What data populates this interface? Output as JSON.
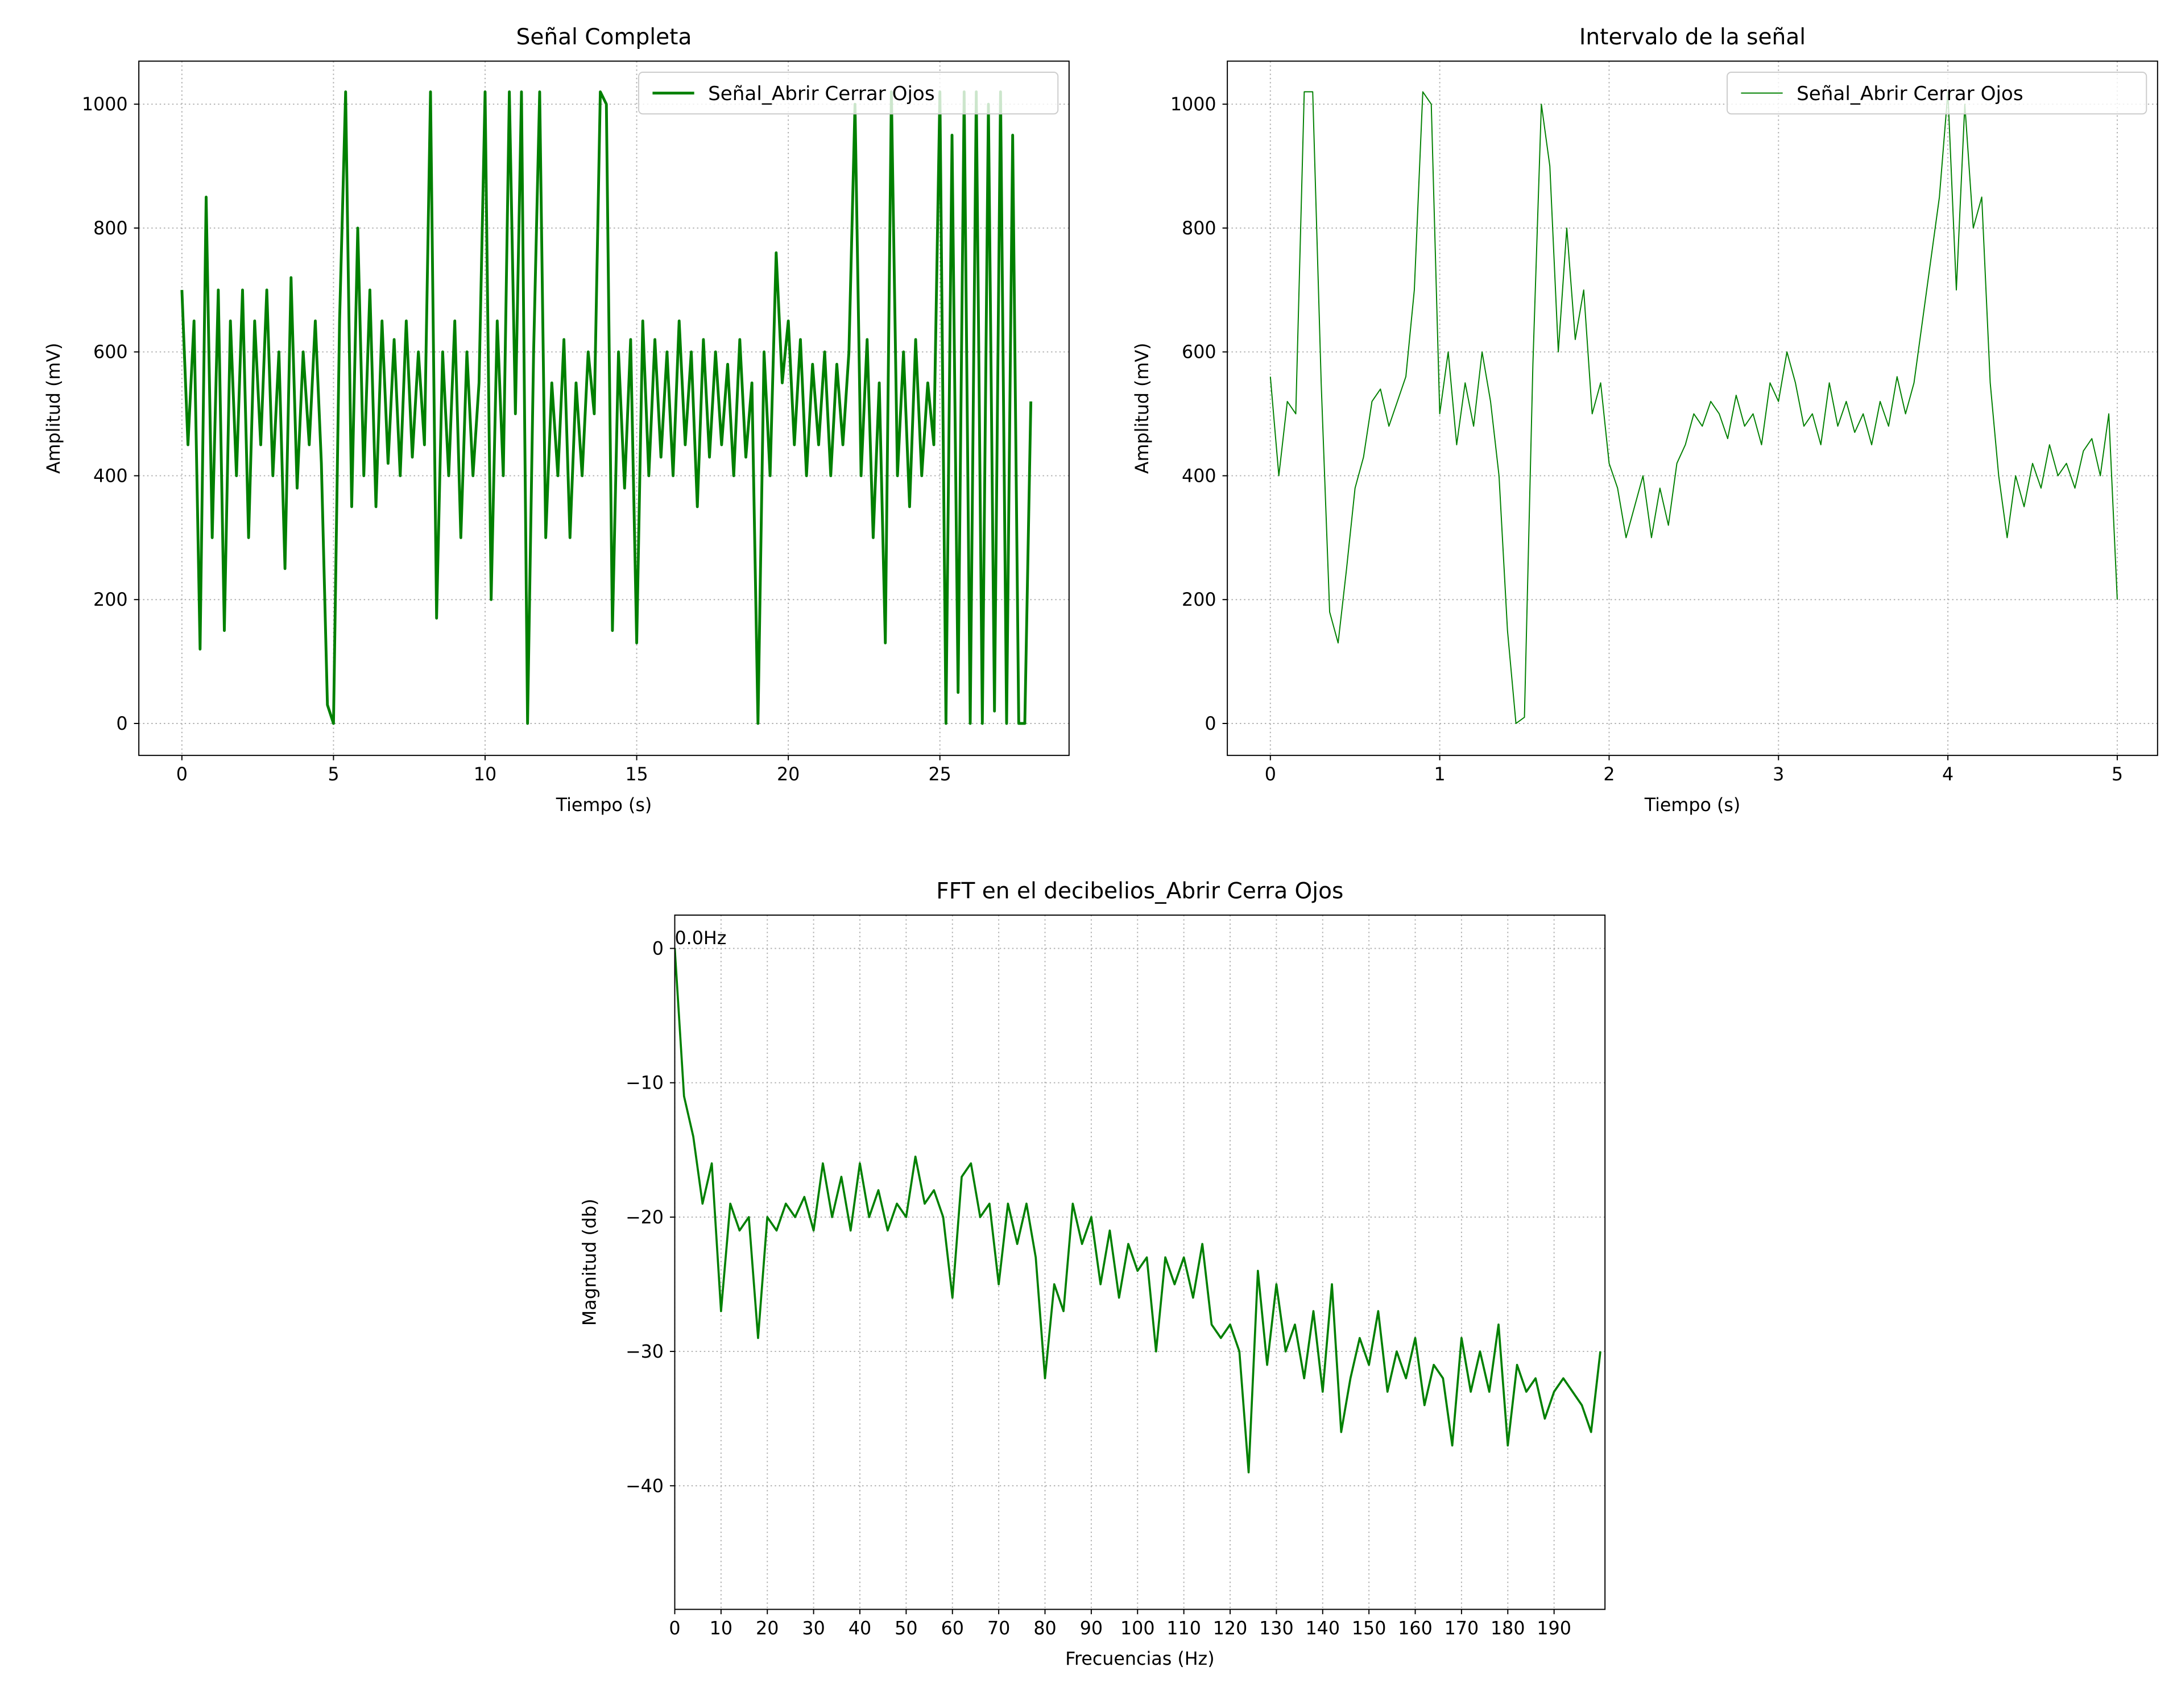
{
  "chart_data": [
    {
      "type": "line",
      "title": "Señal Completa",
      "xlabel": "Tiempo (s)",
      "ylabel": "Amplitud (mV)",
      "x": [
        0,
        0.2,
        0.4,
        0.6,
        0.8,
        1,
        1.2,
        1.4,
        1.6,
        1.8,
        2,
        2.2,
        2.4,
        2.6,
        2.8,
        3,
        3.2,
        3.4,
        3.6,
        3.8,
        4,
        4.2,
        4.4,
        4.6,
        4.8,
        5,
        5.2,
        5.4,
        5.6,
        5.8,
        6,
        6.2,
        6.4,
        6.6,
        6.8,
        7,
        7.2,
        7.4,
        7.6,
        7.8,
        8,
        8.2,
        8.4,
        8.6,
        8.8,
        9,
        9.2,
        9.4,
        9.6,
        9.8,
        10,
        10.2,
        10.4,
        10.6,
        10.8,
        11,
        11.2,
        11.4,
        11.6,
        11.8,
        12,
        12.2,
        12.4,
        12.6,
        12.8,
        13,
        13.2,
        13.4,
        13.6,
        13.8,
        14,
        14.2,
        14.4,
        14.6,
        14.8,
        15,
        15.2,
        15.4,
        15.6,
        15.8,
        16,
        16.2,
        16.4,
        16.6,
        16.8,
        17,
        17.2,
        17.4,
        17.6,
        17.8,
        18,
        18.2,
        18.4,
        18.6,
        18.8,
        19,
        19.2,
        19.4,
        19.6,
        19.8,
        20,
        20.2,
        20.4,
        20.6,
        20.8,
        21,
        21.2,
        21.4,
        21.6,
        21.8,
        22,
        22.2,
        22.4,
        22.6,
        22.8,
        23,
        23.2,
        23.4,
        23.6,
        23.8,
        24,
        24.2,
        24.4,
        24.6,
        24.8,
        25,
        25.2,
        25.4,
        25.6,
        25.8,
        26,
        26.2,
        26.4,
        26.6,
        26.8,
        27,
        27.2,
        27.4,
        27.6,
        27.8,
        28
      ],
      "series": [
        {
          "name": "Señal_Abrir Cerrar Ojos",
          "color": "#008000",
          "linewidth": 2,
          "values": [
            700,
            450,
            650,
            120,
            850,
            300,
            700,
            150,
            650,
            400,
            700,
            300,
            650,
            450,
            700,
            400,
            600,
            250,
            720,
            380,
            600,
            450,
            650,
            420,
            30,
            0,
            650,
            1020,
            350,
            800,
            400,
            700,
            350,
            650,
            420,
            620,
            400,
            650,
            430,
            600,
            450,
            1020,
            170,
            600,
            400,
            650,
            300,
            600,
            400,
            550,
            1020,
            200,
            650,
            400,
            1020,
            500,
            1020,
            0,
            600,
            1020,
            300,
            550,
            400,
            620,
            300,
            550,
            400,
            600,
            500,
            1020,
            1000,
            150,
            600,
            380,
            620,
            130,
            650,
            400,
            620,
            430,
            600,
            400,
            650,
            450,
            600,
            350,
            620,
            430,
            600,
            450,
            580,
            400,
            620,
            430,
            550,
            0,
            600,
            400,
            760,
            550,
            650,
            450,
            620,
            400,
            580,
            450,
            600,
            400,
            580,
            450,
            600,
            1000,
            400,
            620,
            300,
            550,
            130,
            1020,
            400,
            600,
            350,
            620,
            400,
            550,
            450,
            1020,
            0,
            950,
            50,
            1020,
            0,
            1020,
            0,
            1000,
            20,
            1020,
            0,
            950,
            0,
            0,
            520
          ]
        }
      ],
      "xlim": [
        -1.42,
        29.26
      ],
      "ylim": [
        -51.6,
        1069.5
      ],
      "xticks": [
        0,
        5,
        10,
        15,
        20,
        25
      ],
      "yticks": [
        0,
        200,
        400,
        600,
        800,
        1000
      ],
      "grid": true,
      "legend": "upper right"
    },
    {
      "type": "line",
      "title": "Intervalo de la señal",
      "xlabel": "Tiempo (s)",
      "ylabel": "Amplitud (mV)",
      "x": [
        0,
        0.05,
        0.1,
        0.15,
        0.2,
        0.25,
        0.3,
        0.35,
        0.4,
        0.45,
        0.5,
        0.55,
        0.6,
        0.65,
        0.7,
        0.75,
        0.8,
        0.85,
        0.9,
        0.95,
        1,
        1.05,
        1.1,
        1.15,
        1.2,
        1.25,
        1.3,
        1.35,
        1.4,
        1.45,
        1.5,
        1.55,
        1.6,
        1.65,
        1.7,
        1.75,
        1.8,
        1.85,
        1.9,
        1.95,
        2,
        2.05,
        2.1,
        2.15,
        2.2,
        2.25,
        2.3,
        2.35,
        2.4,
        2.45,
        2.5,
        2.55,
        2.6,
        2.65,
        2.7,
        2.75,
        2.8,
        2.85,
        2.9,
        2.95,
        3,
        3.05,
        3.1,
        3.15,
        3.2,
        3.25,
        3.3,
        3.35,
        3.4,
        3.45,
        3.5,
        3.55,
        3.6,
        3.65,
        3.7,
        3.75,
        3.8,
        3.85,
        3.9,
        3.95,
        4,
        4.05,
        4.1,
        4.15,
        4.2,
        4.25,
        4.3,
        4.35,
        4.4,
        4.45,
        4.5,
        4.55,
        4.6,
        4.65,
        4.7,
        4.75,
        4.8,
        4.85,
        4.9,
        4.95,
        5
      ],
      "series": [
        {
          "name": "Señal_Abrir Cerrar Ojos",
          "color": "#008000",
          "linewidth": 0.8,
          "values": [
            560,
            400,
            520,
            500,
            1020,
            1020,
            550,
            180,
            130,
            250,
            380,
            430,
            520,
            540,
            480,
            520,
            560,
            700,
            1020,
            1000,
            500,
            600,
            450,
            550,
            480,
            600,
            520,
            400,
            150,
            0,
            10,
            580,
            1000,
            900,
            600,
            800,
            620,
            700,
            500,
            550,
            420,
            380,
            300,
            350,
            400,
            300,
            380,
            320,
            420,
            450,
            500,
            480,
            520,
            500,
            460,
            530,
            480,
            500,
            450,
            550,
            520,
            600,
            550,
            480,
            500,
            450,
            550,
            480,
            520,
            470,
            500,
            450,
            520,
            480,
            560,
            500,
            550,
            650,
            750,
            850,
            1020,
            700,
            1000,
            800,
            850,
            550,
            400,
            300,
            400,
            350,
            420,
            380,
            450,
            400,
            420,
            380,
            440,
            460,
            400,
            500,
            200
          ]
        }
      ],
      "xlim": [
        -0.254,
        5.238
      ],
      "ylim": [
        -51.6,
        1069.5
      ],
      "xticks": [
        0,
        1,
        2,
        3,
        4,
        5
      ],
      "yticks": [
        0,
        200,
        400,
        600,
        800,
        1000
      ],
      "grid": true,
      "legend": "upper right"
    },
    {
      "type": "line",
      "title": "FFT en el decibelios_Abrir Cerra Ojos",
      "xlabel": "Frecuencias (Hz)",
      "ylabel": "Magnitud (db)",
      "x": [
        0,
        2,
        4,
        6,
        8,
        10,
        12,
        14,
        16,
        18,
        20,
        22,
        24,
        26,
        28,
        30,
        32,
        34,
        36,
        38,
        40,
        42,
        44,
        46,
        48,
        50,
        52,
        54,
        56,
        58,
        60,
        62,
        64,
        66,
        68,
        70,
        72,
        74,
        76,
        78,
        80,
        82,
        84,
        86,
        88,
        90,
        92,
        94,
        96,
        98,
        100,
        102,
        104,
        106,
        108,
        110,
        112,
        114,
        116,
        118,
        120,
        122,
        124,
        126,
        128,
        130,
        132,
        134,
        136,
        138,
        140,
        142,
        144,
        146,
        148,
        150,
        152,
        154,
        156,
        158,
        160,
        162,
        164,
        166,
        168,
        170,
        172,
        174,
        176,
        178,
        180,
        182,
        184,
        186,
        188,
        190,
        192,
        194,
        196,
        198,
        200
      ],
      "series": [
        {
          "color": "#008000",
          "linewidth": 1.5,
          "values": [
            0,
            -11,
            -14,
            -19,
            -16,
            -27,
            -19,
            -21,
            -20,
            -29,
            -20,
            -21,
            -19,
            -20,
            -18.5,
            -21,
            -16,
            -20,
            -17,
            -21,
            -16,
            -20,
            -18,
            -21,
            -19,
            -20,
            -15.5,
            -19,
            -18,
            -20,
            -26,
            -17,
            -16,
            -20,
            -19,
            -25,
            -19,
            -22,
            -19,
            -23,
            -32,
            -25,
            -27,
            -19,
            -22,
            -20,
            -25,
            -21,
            -26,
            -22,
            -24,
            -23,
            -30,
            -23,
            -25,
            -23,
            -26,
            -22,
            -28,
            -29,
            -28,
            -30,
            -39,
            -24,
            -31,
            -25,
            -30,
            -28,
            -32,
            -27,
            -33,
            -25,
            -36,
            -32,
            -29,
            -31,
            -27,
            -33,
            -30,
            -32,
            -29,
            -34,
            -31,
            -32,
            -37,
            -29,
            -33,
            -30,
            -33,
            -28,
            -37,
            -31,
            -33,
            -32,
            -35,
            -33,
            -32,
            -33,
            -34,
            -36,
            -30
          ]
        }
      ],
      "xlim": [
        0,
        201
      ],
      "ylim": [
        -49.2,
        2.48
      ],
      "xticks": [
        0,
        10,
        20,
        30,
        40,
        50,
        60,
        70,
        80,
        90,
        100,
        110,
        120,
        130,
        140,
        150,
        160,
        170,
        180,
        190
      ],
      "yticks": [
        {
          "value": -40,
          "label": "−40"
        },
        {
          "value": -30,
          "label": "−30"
        },
        {
          "value": -20,
          "label": "−20"
        },
        {
          "value": -10,
          "label": "−10"
        },
        0
      ],
      "annotations": [
        {
          "text": "0.0Hz",
          "x": 0,
          "y": 0
        }
      ],
      "grid": true
    }
  ]
}
